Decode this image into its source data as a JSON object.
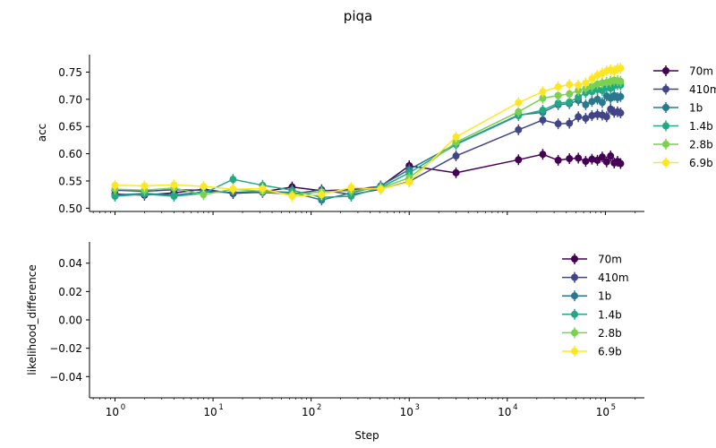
{
  "chart_data": [
    {
      "type": "line",
      "title": "piqa",
      "xlabel": "",
      "ylabel": "acc",
      "xscale": "log",
      "xlim": [
        0.55,
        250000
      ],
      "ylim": [
        0.494,
        0.782
      ],
      "yticks": [
        0.5,
        0.55,
        0.6,
        0.65,
        0.7,
        0.75
      ],
      "ytick_labels": [
        "0.50",
        "0.55",
        "0.60",
        "0.65",
        "0.70",
        "0.75"
      ],
      "grid": false,
      "legend_position": "outside-right",
      "error_bars": true,
      "series": [
        {
          "name": "70m",
          "color": "#440154",
          "x": [
            1,
            2,
            4,
            8,
            16,
            32,
            64,
            128,
            256,
            512,
            1000,
            3000,
            13000,
            23000,
            33000,
            43000,
            53000,
            63000,
            73000,
            83000,
            93000,
            103000,
            113000,
            123000,
            133000,
            143000
          ],
          "y": [
            0.526,
            0.524,
            0.528,
            0.535,
            0.527,
            0.53,
            0.539,
            0.532,
            0.534,
            0.54,
            0.578,
            0.565,
            0.589,
            0.599,
            0.588,
            0.591,
            0.592,
            0.586,
            0.59,
            0.588,
            0.594,
            0.585,
            0.596,
            0.583,
            0.586,
            0.582
          ]
        },
        {
          "name": "410m",
          "color": "#414487",
          "x": [
            1,
            2,
            4,
            8,
            16,
            32,
            64,
            128,
            256,
            512,
            1000,
            3000,
            13000,
            23000,
            33000,
            43000,
            53000,
            63000,
            73000,
            83000,
            93000,
            103000,
            113000,
            123000,
            133000,
            143000
          ],
          "y": [
            0.533,
            0.531,
            0.534,
            0.533,
            0.528,
            0.529,
            0.526,
            0.534,
            0.525,
            0.535,
            0.549,
            0.596,
            0.644,
            0.662,
            0.655,
            0.656,
            0.668,
            0.665,
            0.67,
            0.672,
            0.671,
            0.668,
            0.682,
            0.676,
            0.677,
            0.675
          ]
        },
        {
          "name": "1b",
          "color": "#2a788e",
          "x": [
            1,
            2,
            4,
            8,
            16,
            32,
            64,
            128,
            256,
            512,
            1000,
            3000,
            13000,
            23000,
            33000,
            43000,
            53000,
            63000,
            73000,
            83000,
            93000,
            103000,
            113000,
            123000,
            133000,
            143000
          ],
          "y": [
            0.524,
            0.527,
            0.524,
            0.53,
            0.529,
            0.531,
            0.529,
            0.515,
            0.528,
            0.541,
            0.571,
            0.618,
            0.671,
            0.676,
            0.69,
            0.692,
            0.698,
            0.69,
            0.696,
            0.7,
            0.694,
            0.706,
            0.702,
            0.707,
            0.703,
            0.705
          ]
        },
        {
          "name": "1.4b",
          "color": "#22a884",
          "x": [
            1,
            2,
            4,
            8,
            16,
            32,
            64,
            128,
            256,
            512,
            1000,
            3000,
            13000,
            23000,
            33000,
            43000,
            53000,
            63000,
            73000,
            83000,
            93000,
            103000,
            113000,
            123000,
            133000,
            143000
          ],
          "y": [
            0.522,
            0.526,
            0.522,
            0.527,
            0.553,
            0.542,
            0.533,
            0.52,
            0.522,
            0.538,
            0.565,
            0.617,
            0.67,
            0.68,
            0.693,
            0.695,
            0.704,
            0.712,
            0.714,
            0.718,
            0.716,
            0.722,
            0.72,
            0.725,
            0.727,
            0.726
          ]
        },
        {
          "name": "2.8b",
          "color": "#7ad151",
          "x": [
            1,
            2,
            4,
            8,
            16,
            32,
            64,
            128,
            256,
            512,
            1000,
            3000,
            13000,
            23000,
            33000,
            43000,
            53000,
            63000,
            73000,
            83000,
            93000,
            103000,
            113000,
            123000,
            133000,
            143000
          ],
          "y": [
            0.535,
            0.533,
            0.537,
            0.525,
            0.535,
            0.531,
            0.525,
            0.53,
            0.532,
            0.537,
            0.556,
            0.621,
            0.677,
            0.702,
            0.707,
            0.71,
            0.716,
            0.72,
            0.724,
            0.728,
            0.73,
            0.731,
            0.733,
            0.735,
            0.734,
            0.733
          ]
        },
        {
          "name": "6.9b",
          "color": "#fde725",
          "x": [
            1,
            2,
            4,
            8,
            16,
            32,
            64,
            128,
            256,
            512,
            1000,
            3000,
            13000,
            23000,
            33000,
            43000,
            53000,
            63000,
            73000,
            83000,
            93000,
            103000,
            113000,
            123000,
            133000,
            143000
          ],
          "y": [
            0.542,
            0.541,
            0.543,
            0.54,
            0.535,
            0.536,
            0.522,
            0.525,
            0.538,
            0.535,
            0.548,
            0.631,
            0.694,
            0.714,
            0.723,
            0.727,
            0.726,
            0.73,
            0.738,
            0.744,
            0.748,
            0.752,
            0.754,
            0.752,
            0.756,
            0.757
          ]
        }
      ]
    },
    {
      "type": "line",
      "title": "",
      "xlabel": "Step",
      "ylabel": "likelihood_difference",
      "xscale": "log",
      "xlim": [
        0.55,
        250000
      ],
      "ylim": [
        -0.055,
        0.055
      ],
      "yticks": [
        -0.04,
        -0.02,
        0.0,
        0.02,
        0.04
      ],
      "ytick_labels": [
        "−0.04",
        "−0.02",
        "0.00",
        "0.02",
        "0.04"
      ],
      "xticks": [
        1,
        10,
        100,
        1000,
        10000,
        100000
      ],
      "xtick_labels": [
        [
          "10",
          "0"
        ],
        [
          "10",
          "1"
        ],
        [
          "10",
          "2"
        ],
        [
          "10",
          "3"
        ],
        [
          "10",
          "4"
        ],
        [
          "10",
          "5"
        ]
      ],
      "grid": false,
      "legend_position": "upper-right",
      "series": [
        {
          "name": "70m",
          "color": "#440154",
          "x": [],
          "y": []
        },
        {
          "name": "410m",
          "color": "#414487",
          "x": [],
          "y": []
        },
        {
          "name": "1b",
          "color": "#2a788e",
          "x": [],
          "y": []
        },
        {
          "name": "1.4b",
          "color": "#22a884",
          "x": [],
          "y": []
        },
        {
          "name": "2.8b",
          "color": "#7ad151",
          "x": [],
          "y": []
        },
        {
          "name": "6.9b",
          "color": "#fde725",
          "x": [],
          "y": []
        }
      ]
    }
  ]
}
